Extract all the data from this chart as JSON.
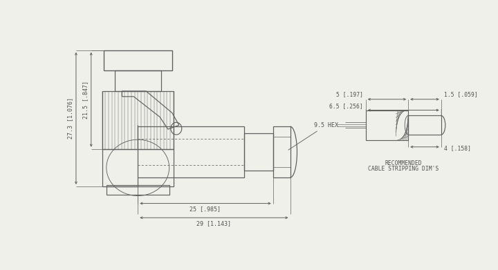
{
  "bg_color": "#f0f0eb",
  "line_color": "#606060",
  "dim_color": "#606060",
  "text_color": "#505050",
  "dim_labels": {
    "width_25": "25 [.985]",
    "width_29": "29 [1.143]",
    "height_273": "27.3 [1.076]",
    "height_215": "21.5 [.847]",
    "hex_9p5": "9.5 HEX",
    "cable_dim_5": "5 [.197]",
    "cable_dim_15": "1.5 [.059]",
    "cable_dim_65": "6.5 [.256]",
    "cable_dim_4": "4 [.158]",
    "cable_label_1": "RECOMMENDED",
    "cable_label_2": "CABLE STRIPPING DIM'S"
  }
}
